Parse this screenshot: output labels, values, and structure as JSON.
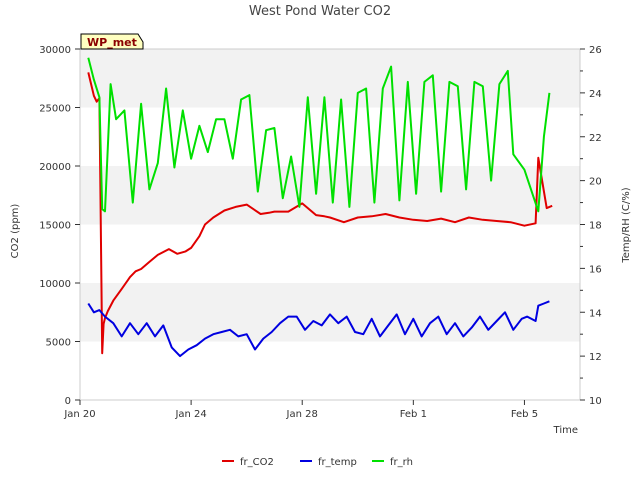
{
  "chart_data": {
    "type": "line",
    "title": "West Pond Water CO2",
    "badge": "WP_met",
    "xlabel": "Time",
    "ylabel_left": "CO2 (ppm)",
    "ylabel_right": "Temp/RH (C/%)",
    "xlim": [
      0,
      18
    ],
    "ylim_left": [
      0,
      30000
    ],
    "ylim_right": [
      10,
      26
    ],
    "x_ticks": [
      {
        "x": 0,
        "label": "Jan 20"
      },
      {
        "x": 4,
        "label": "Jan 24"
      },
      {
        "x": 8,
        "label": "Jan 28"
      },
      {
        "x": 12,
        "label": "Feb 1"
      },
      {
        "x": 16,
        "label": "Feb 5"
      }
    ],
    "y_left_ticks": [
      0,
      5000,
      10000,
      15000,
      20000,
      25000,
      30000
    ],
    "y_right_ticks": [
      10,
      12,
      14,
      16,
      18,
      20,
      22,
      24,
      26
    ],
    "bands": [
      [
        5000,
        10000
      ],
      [
        15000,
        20000
      ],
      [
        25000,
        30000
      ]
    ],
    "grid": false,
    "legend_position": "bottom",
    "series": [
      {
        "name": "fr_CO2",
        "axis": "left",
        "color": "#e00000",
        "x": [
          0.3,
          0.4,
          0.5,
          0.6,
          0.7,
          0.8,
          0.85,
          0.9,
          1.0,
          1.2,
          1.5,
          1.8,
          2.0,
          2.2,
          2.5,
          2.8,
          3.2,
          3.5,
          3.8,
          4.0,
          4.3,
          4.5,
          4.8,
          5.2,
          5.6,
          6.0,
          6.5,
          6.8,
          7.0,
          7.5,
          8.0,
          8.5,
          8.8,
          9.0,
          9.5,
          10.0,
          10.5,
          11.0,
          11.5,
          12.0,
          12.5,
          13.0,
          13.5,
          14.0,
          14.5,
          15.0,
          15.5,
          16.0,
          16.4,
          16.5,
          16.8,
          17.0
        ],
        "values": [
          28000,
          27000,
          26000,
          25500,
          25800,
          4000,
          6500,
          7000,
          7600,
          8500,
          9500,
          10500,
          11000,
          11200,
          11800,
          12400,
          12900,
          12500,
          12700,
          13000,
          14000,
          15000,
          15600,
          16200,
          16500,
          16700,
          15900,
          16000,
          16100,
          16100,
          16800,
          15800,
          15700,
          15600,
          15200,
          15600,
          15700,
          15900,
          15600,
          15400,
          15300,
          15500,
          15200,
          15600,
          15400,
          15300,
          15200,
          14900,
          15100,
          20700,
          16400,
          16600
        ]
      },
      {
        "name": "fr_temp",
        "axis": "right",
        "color": "#0000e0",
        "x": [
          0.3,
          0.5,
          0.7,
          0.9,
          1.2,
          1.5,
          1.8,
          2.1,
          2.4,
          2.7,
          3.0,
          3.3,
          3.6,
          3.9,
          4.2,
          4.5,
          4.8,
          5.1,
          5.4,
          5.7,
          6.0,
          6.3,
          6.6,
          6.9,
          7.2,
          7.5,
          7.8,
          8.1,
          8.4,
          8.7,
          9.0,
          9.3,
          9.6,
          9.9,
          10.2,
          10.5,
          10.8,
          11.1,
          11.4,
          11.7,
          12.0,
          12.3,
          12.6,
          12.9,
          13.2,
          13.5,
          13.8,
          14.1,
          14.4,
          14.7,
          15.0,
          15.3,
          15.6,
          15.9,
          16.1,
          16.4,
          16.5,
          16.7,
          16.9
        ],
        "values": [
          14.4,
          14.0,
          14.1,
          13.8,
          13.5,
          12.9,
          13.5,
          13.0,
          13.5,
          12.9,
          13.4,
          12.4,
          12.0,
          12.3,
          12.5,
          12.8,
          13.0,
          13.1,
          13.2,
          12.9,
          13.0,
          12.3,
          12.8,
          13.1,
          13.5,
          13.8,
          13.8,
          13.2,
          13.6,
          13.4,
          13.9,
          13.5,
          13.8,
          13.1,
          13.0,
          13.7,
          12.9,
          13.4,
          13.9,
          13.0,
          13.7,
          12.9,
          13.5,
          13.8,
          13.0,
          13.5,
          12.9,
          13.3,
          13.8,
          13.2,
          13.6,
          14.0,
          13.2,
          13.7,
          13.8,
          13.6,
          14.3,
          14.4,
          14.5
        ]
      },
      {
        "name": "fr_rh",
        "axis": "right",
        "color": "#00e000",
        "x": [
          0.3,
          0.5,
          0.7,
          0.8,
          0.9,
          1.1,
          1.3,
          1.6,
          1.9,
          2.2,
          2.5,
          2.8,
          3.1,
          3.4,
          3.7,
          4.0,
          4.3,
          4.6,
          4.9,
          5.2,
          5.5,
          5.8,
          6.1,
          6.4,
          6.7,
          7.0,
          7.3,
          7.6,
          7.9,
          8.2,
          8.5,
          8.8,
          9.1,
          9.4,
          9.7,
          10.0,
          10.3,
          10.6,
          10.9,
          11.2,
          11.5,
          11.8,
          12.1,
          12.4,
          12.7,
          13.0,
          13.3,
          13.6,
          13.9,
          14.2,
          14.5,
          14.8,
          15.1,
          15.4,
          15.6,
          16.0,
          16.5,
          16.7,
          16.9
        ],
        "values": [
          25.6,
          24.6,
          23.8,
          18.7,
          18.6,
          24.4,
          22.8,
          23.2,
          19.0,
          23.5,
          19.6,
          20.8,
          24.2,
          20.6,
          23.2,
          21.0,
          22.5,
          21.3,
          22.8,
          22.8,
          21.0,
          23.7,
          23.9,
          19.5,
          22.3,
          22.4,
          19.2,
          21.1,
          18.8,
          23.8,
          19.4,
          23.8,
          19.0,
          23.7,
          18.8,
          24.0,
          24.2,
          19.0,
          24.2,
          25.2,
          19.1,
          24.5,
          19.4,
          24.5,
          24.8,
          19.5,
          24.5,
          24.3,
          19.6,
          24.5,
          24.3,
          20.0,
          24.4,
          25.0,
          21.2,
          20.5,
          18.6,
          22.0,
          24.0
        ]
      }
    ]
  }
}
